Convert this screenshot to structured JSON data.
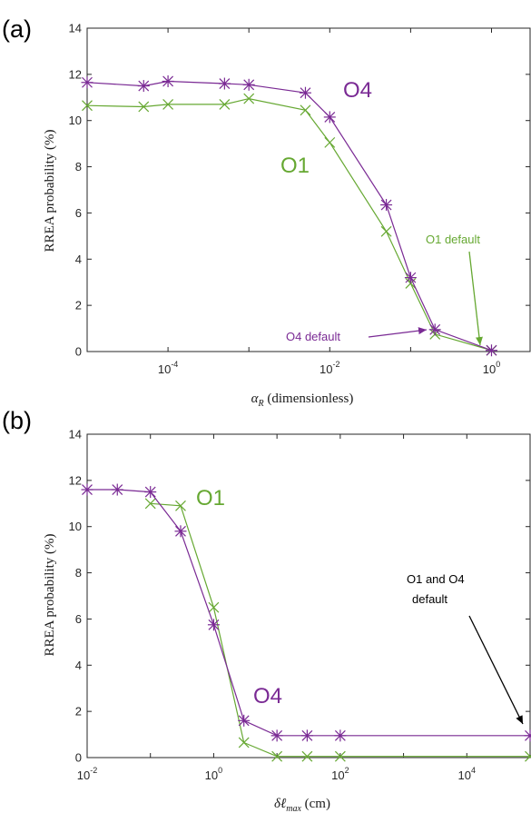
{
  "colors": {
    "O1": "#66a832",
    "O4": "#7a2a94",
    "annotation_black": "#000000"
  },
  "chart_data": [
    {
      "type": "line",
      "panel_label": "(a)",
      "xscale": "log",
      "xlim": [
        1e-05,
        3
      ],
      "ylim": [
        0,
        14
      ],
      "xticks": [
        0.0001,
        0.01,
        1
      ],
      "xtick_labels": [
        {
          "base": "10",
          "exp": "-4"
        },
        {
          "base": "10",
          "exp": "-2"
        },
        {
          "base": "10",
          "exp": "0"
        }
      ],
      "yticks": [
        0,
        2,
        4,
        6,
        8,
        10,
        12,
        14
      ],
      "ytick_labels": [
        "0",
        "2",
        "4",
        "6",
        "8",
        "10",
        "12",
        "14"
      ],
      "xlabel": "α_R (dimensionless)",
      "xlabel_parts": {
        "symbol": "α",
        "sub": "R",
        "rest": " (dimensionless)"
      },
      "ylabel": "RREA probability (%)",
      "series": [
        {
          "name": "O1",
          "color": "#66a832",
          "marker": "x",
          "x": [
            1e-05,
            5e-05,
            0.0001,
            0.0005,
            0.001,
            0.005,
            0.01,
            0.05,
            0.1,
            0.2,
            1
          ],
          "y": [
            10.65,
            10.6,
            10.7,
            10.7,
            10.95,
            10.45,
            9.05,
            5.2,
            2.95,
            0.75,
            0.05
          ]
        },
        {
          "name": "O4",
          "color": "#7a2a94",
          "marker": "asterisk",
          "x": [
            1e-05,
            5e-05,
            0.0001,
            0.0005,
            0.001,
            0.005,
            0.01,
            0.05,
            0.1,
            0.2,
            1
          ],
          "y": [
            11.65,
            11.5,
            11.7,
            11.6,
            11.55,
            11.2,
            10.15,
            6.35,
            3.2,
            0.95,
            0.05
          ]
        }
      ],
      "annotations": [
        {
          "text": "O4",
          "kind": "series-label",
          "color": "#7a2a94"
        },
        {
          "text": "O1",
          "kind": "series-label",
          "color": "#66a832"
        },
        {
          "text": "O1 default",
          "kind": "arrow-label",
          "color": "#66a832"
        },
        {
          "text": "O4 default",
          "kind": "arrow-label",
          "color": "#7a2a94"
        }
      ]
    },
    {
      "type": "line",
      "panel_label": "(b)",
      "xscale": "log",
      "xlim": [
        0.01,
        100000
      ],
      "ylim": [
        0,
        14
      ],
      "xticks": [
        0.01,
        1,
        100,
        10000
      ],
      "xtick_labels": [
        {
          "base": "10",
          "exp": "-2"
        },
        {
          "base": "10",
          "exp": "0"
        },
        {
          "base": "10",
          "exp": "2"
        },
        {
          "base": "10",
          "exp": "4"
        }
      ],
      "yticks": [
        0,
        2,
        4,
        6,
        8,
        10,
        12,
        14
      ],
      "ytick_labels": [
        "0",
        "2",
        "4",
        "6",
        "8",
        "10",
        "12",
        "14"
      ],
      "xlabel": "δℓ_max (cm)",
      "xlabel_parts": {
        "symbol": "δℓ",
        "sub": "max",
        "rest": " (cm)"
      },
      "ylabel": "RREA probability (%)",
      "series": [
        {
          "name": "O1",
          "color": "#66a832",
          "marker": "x",
          "x": [
            0.1,
            0.3,
            1,
            3,
            10,
            30,
            100,
            100000
          ],
          "y": [
            11.0,
            10.9,
            6.5,
            0.65,
            0.05,
            0.05,
            0.05,
            0.05
          ]
        },
        {
          "name": "O4",
          "color": "#7a2a94",
          "marker": "asterisk",
          "x": [
            0.01,
            0.03,
            0.1,
            0.3,
            1,
            3,
            10,
            30,
            100,
            100000
          ],
          "y": [
            11.6,
            11.6,
            11.5,
            9.8,
            5.75,
            1.6,
            0.95,
            0.95,
            0.95,
            0.95
          ]
        }
      ],
      "annotations": [
        {
          "text": "O1",
          "kind": "series-label",
          "color": "#66a832"
        },
        {
          "text": "O4",
          "kind": "series-label",
          "color": "#7a2a94"
        },
        {
          "text_line1": "O1 and O4",
          "text_line2": "default",
          "kind": "arrow-label",
          "color": "#000000"
        }
      ]
    }
  ]
}
